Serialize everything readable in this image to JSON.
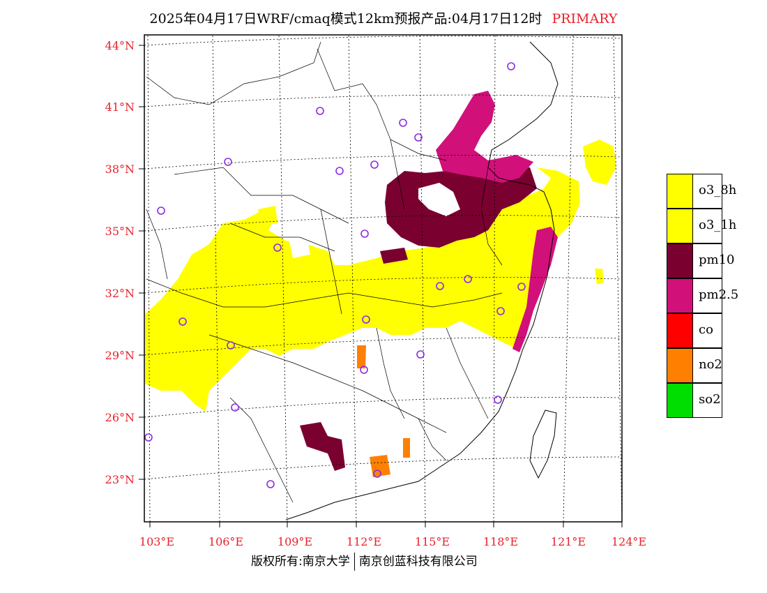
{
  "title": {
    "main": "2025年04月17日WRF/cmaq模式12km预报产品:04月17日12时",
    "tag": "PRIMARY",
    "tag_color": "#e8202a"
  },
  "map": {
    "lat_labels": [
      "44°N",
      "41°N",
      "38°N",
      "35°N",
      "32°N",
      "29°N",
      "26°N",
      "23°N"
    ],
    "lon_labels": [
      "103°E",
      "106°E",
      "109°E",
      "112°E",
      "115°E",
      "118°E",
      "121°E",
      "124°E"
    ],
    "pollutant_colors": {
      "o3_8h": "#ffff00",
      "o3_1h": "#ffff00",
      "pm10": "#7a0030",
      "pm2.5": "#d1107a",
      "co": "#ff0000",
      "no2": "#ff7f00",
      "so2": "#00dd00"
    },
    "station_marker_color": "#8a2be2"
  },
  "legend": {
    "items": [
      {
        "label": "o3_8h",
        "color": "#ffff00"
      },
      {
        "label": "o3_1h",
        "color": "#ffff00"
      },
      {
        "label": "pm10",
        "color": "#7a0030"
      },
      {
        "label": "pm2.5",
        "color": "#d1107a"
      },
      {
        "label": "co",
        "color": "#ff0000"
      },
      {
        "label": "no2",
        "color": "#ff7f00"
      },
      {
        "label": "so2",
        "color": "#00dd00"
      }
    ]
  },
  "footer": {
    "left": "版权所有:南京大学",
    "right": "南京创蓝科技有限公司"
  }
}
